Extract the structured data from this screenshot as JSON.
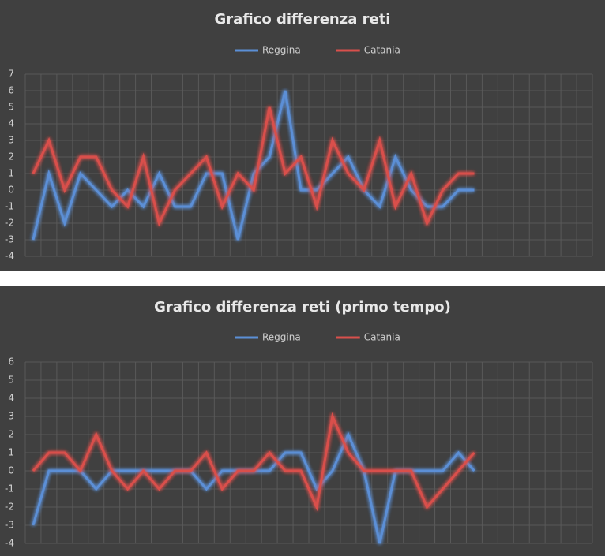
{
  "chart_data": [
    {
      "type": "line",
      "title": "Grafico differenza reti",
      "categories": [
        null,
        null,
        null,
        null,
        null,
        null,
        null,
        null,
        null,
        null,
        null,
        null,
        null,
        null,
        null,
        null,
        null,
        null,
        null,
        null,
        null,
        null,
        null,
        null,
        null,
        null,
        null,
        null,
        null,
        null,
        null,
        null,
        null,
        null,
        null,
        null
      ],
      "series": [
        {
          "name": "Reggina",
          "color": "#5b8fd6",
          "values": [
            -3,
            1,
            -2,
            1,
            0,
            -1,
            0,
            -1,
            1,
            -1,
            -1,
            1,
            1,
            -3,
            1,
            2,
            6,
            0,
            0,
            1,
            2,
            0,
            -1,
            2,
            0,
            -1,
            -1,
            0,
            0,
            null,
            null,
            null,
            null,
            null,
            null,
            null
          ]
        },
        {
          "name": "Catania",
          "color": "#d9504c",
          "values": [
            1,
            3,
            0,
            2,
            2,
            0,
            -1,
            2,
            -2,
            0,
            1,
            2,
            -1,
            1,
            0,
            5,
            1,
            2,
            -1,
            3,
            1,
            0,
            3,
            -1,
            1,
            -2,
            0,
            1,
            1,
            null,
            null,
            null,
            null,
            null,
            null,
            null
          ]
        }
      ],
      "ylim": [
        -4,
        7
      ],
      "yticks": [
        -4,
        -3,
        -2,
        -1,
        0,
        1,
        2,
        3,
        4,
        5,
        6,
        7
      ],
      "grid": true,
      "legend": "top"
    },
    {
      "type": "line",
      "title": "Grafico differenza reti (primo tempo)",
      "categories": [
        null,
        null,
        null,
        null,
        null,
        null,
        null,
        null,
        null,
        null,
        null,
        null,
        null,
        null,
        null,
        null,
        null,
        null,
        null,
        null,
        null,
        null,
        null,
        null,
        null,
        null,
        null,
        null,
        null,
        null,
        null,
        null,
        null,
        null,
        null,
        null
      ],
      "series": [
        {
          "name": "Reggina",
          "color": "#5b8fd6",
          "values": [
            -3,
            0,
            0,
            0,
            -1,
            0,
            0,
            0,
            0,
            0,
            0,
            -1,
            0,
            0,
            0,
            0,
            1,
            1,
            -1,
            0,
            2,
            0,
            -4,
            0,
            0,
            0,
            0,
            1,
            0,
            null,
            null,
            null,
            null,
            null,
            null,
            null
          ]
        },
        {
          "name": "Catania",
          "color": "#d9504c",
          "values": [
            0,
            1,
            1,
            0,
            2,
            0,
            -1,
            0,
            -1,
            0,
            0,
            1,
            -1,
            0,
            0,
            1,
            0,
            0,
            -2,
            3,
            1,
            0,
            0,
            0,
            0,
            -2,
            -1,
            0,
            1,
            null,
            null,
            null,
            null,
            null,
            null,
            null
          ]
        }
      ],
      "ylim": [
        -4,
        6
      ],
      "yticks": [
        -4,
        -3,
        -2,
        -1,
        0,
        1,
        2,
        3,
        4,
        5,
        6
      ],
      "grid": true,
      "legend": "top"
    }
  ]
}
